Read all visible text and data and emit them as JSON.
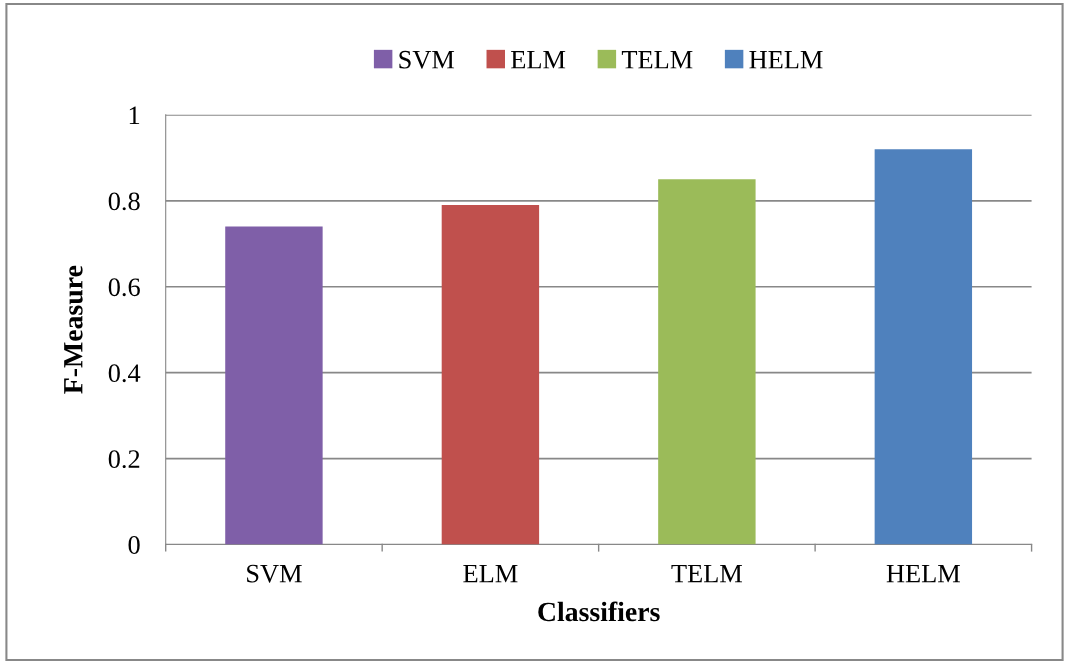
{
  "chart_data": {
    "type": "bar",
    "xlabel": "Classifiers",
    "ylabel": "F-Measure",
    "categories": [
      "SVM",
      "ELM",
      "TELM",
      "HELM"
    ],
    "series": [
      {
        "name": "SVM",
        "color": "#7f5fa8",
        "values": [
          0.74,
          null,
          null,
          null
        ]
      },
      {
        "name": "ELM",
        "color": "#c0504d",
        "values": [
          null,
          0.79,
          null,
          null
        ]
      },
      {
        "name": "TELM",
        "color": "#9bbb59",
        "values": [
          null,
          null,
          0.85,
          null
        ]
      },
      {
        "name": "HELM",
        "color": "#4f81bd",
        "values": [
          null,
          null,
          null,
          0.92
        ]
      }
    ],
    "ylim": [
      0,
      1
    ],
    "yticks": [
      0,
      0.2,
      0.4,
      0.6,
      0.8,
      {
        "value": 1,
        "label": "1"
      }
    ],
    "grid": "y",
    "legend": "top"
  }
}
